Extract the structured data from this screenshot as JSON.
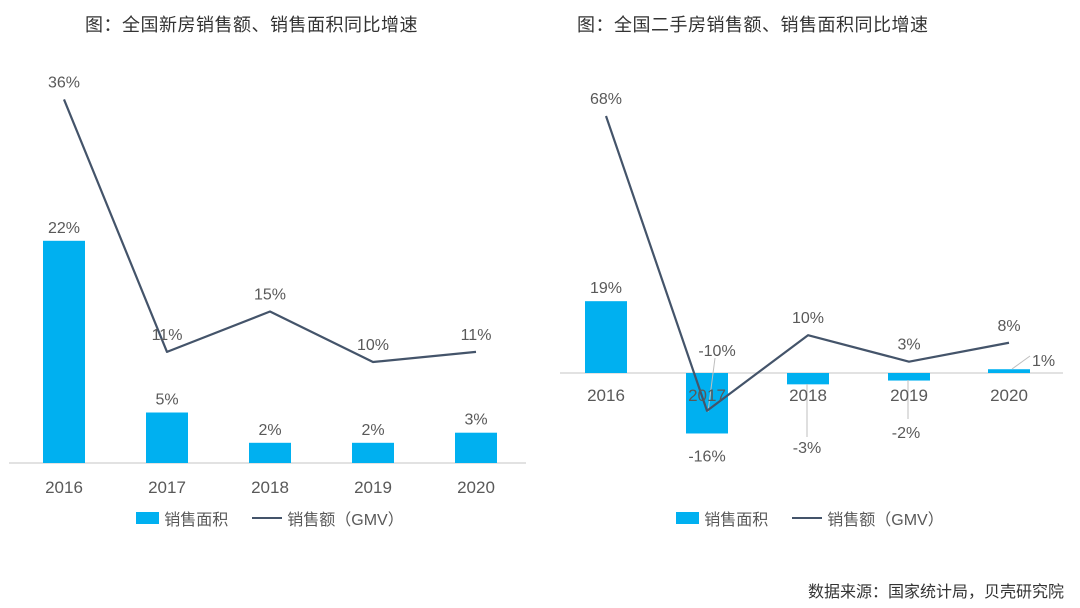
{
  "source_note": "数据来源：国家统计局，贝壳研究院",
  "colors": {
    "bar": "#00B0F0",
    "line": "#44546A",
    "axis": "#D9D9D9",
    "leader": "#BFBFBF",
    "title_text": "#333333",
    "label_text": "#595959",
    "background": "#FFFFFF"
  },
  "chart_data": [
    {
      "type": "combo",
      "title": "图：全国新房销售额、销售面积同比增速",
      "categories": [
        "2016",
        "2017",
        "2018",
        "2019",
        "2020"
      ],
      "series": [
        {
          "name": "销售面积",
          "type": "bar",
          "unit": "%",
          "values": [
            22,
            5,
            2,
            2,
            3
          ]
        },
        {
          "name": "销售额（GMV）",
          "type": "line",
          "unit": "%",
          "values": [
            36,
            11,
            15,
            10,
            11
          ]
        }
      ],
      "data_labels": [
        "22%",
        "5%",
        "2%",
        "2%",
        "3%",
        "36%",
        "11%",
        "15%",
        "10%",
        "11%"
      ],
      "legend_position": "bottom",
      "grid": false,
      "baseline": 0
    },
    {
      "type": "combo",
      "title": "图：全国二手房销售额、销售面积同比增速",
      "categories": [
        "2016",
        "2017",
        "2018",
        "2019",
        "2020"
      ],
      "series": [
        {
          "name": "销售面积",
          "type": "bar",
          "unit": "%",
          "values": [
            19,
            -16,
            -3,
            -2,
            1
          ]
        },
        {
          "name": "销售额（GMV）",
          "type": "line",
          "unit": "%",
          "values": [
            68,
            -10,
            10,
            3,
            8
          ]
        }
      ],
      "data_labels": [
        "19%",
        "-16%",
        "-3%",
        "-2%",
        "1%",
        "68%",
        "-10%",
        "10%",
        "3%",
        "8%"
      ],
      "legend_position": "bottom",
      "grid": false,
      "baseline": 0
    }
  ]
}
